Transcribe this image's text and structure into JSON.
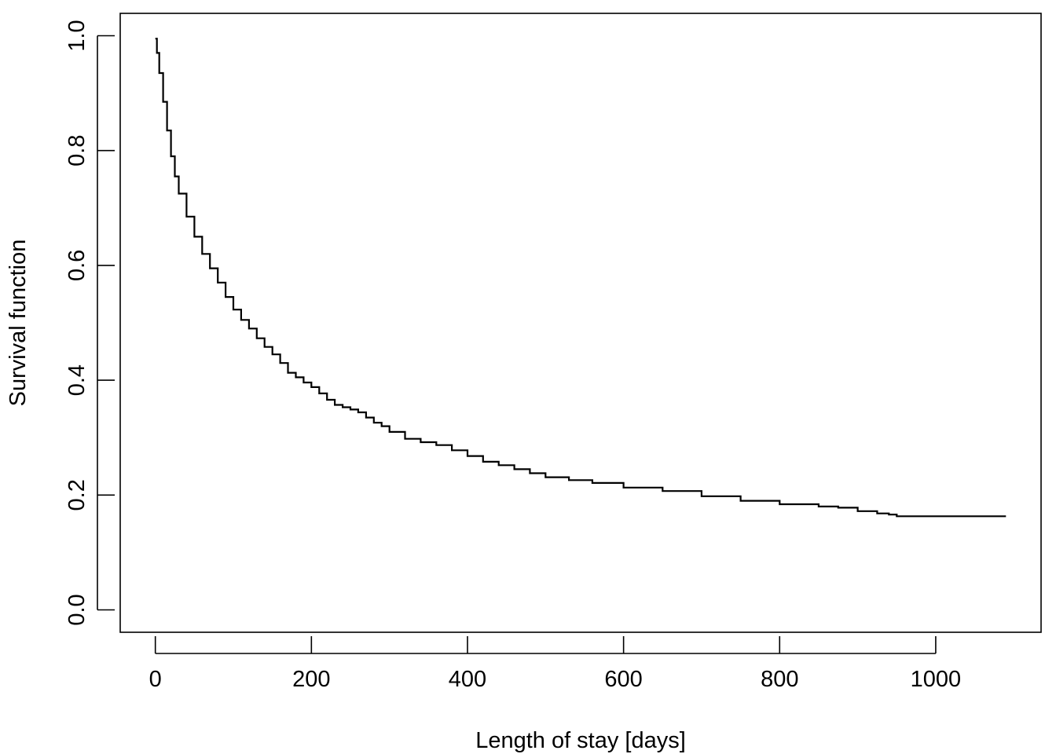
{
  "chart_data": {
    "type": "line",
    "step": true,
    "title": "",
    "xlabel": "Length of stay [days]",
    "ylabel": "Survival function",
    "xlim": [
      -45,
      1135
    ],
    "ylim": [
      -0.039,
      1.039
    ],
    "xticks": [
      0,
      200,
      400,
      600,
      800,
      1000
    ],
    "xtick_labels": [
      "0",
      "200",
      "400",
      "600",
      "800",
      "1000"
    ],
    "yticks": [
      0.0,
      0.2,
      0.4,
      0.6,
      0.8,
      1.0
    ],
    "ytick_labels": [
      "0.0",
      "0.2",
      "0.4",
      "0.6",
      "0.8",
      "1.0"
    ],
    "grid": false,
    "legend": "none",
    "series": [
      {
        "color": "#000000",
        "x": [
          0,
          2,
          5,
          10,
          15,
          20,
          25,
          30,
          40,
          50,
          60,
          70,
          80,
          90,
          100,
          110,
          120,
          130,
          140,
          150,
          160,
          170,
          180,
          190,
          200,
          210,
          220,
          230,
          240,
          250,
          260,
          270,
          280,
          290,
          300,
          320,
          340,
          360,
          380,
          400,
          420,
          440,
          460,
          480,
          500,
          530,
          560,
          600,
          650,
          700,
          750,
          800,
          850,
          875,
          900,
          925,
          940,
          950,
          1000,
          1050,
          1090
        ],
        "y": [
          0.995,
          0.97,
          0.935,
          0.885,
          0.835,
          0.79,
          0.755,
          0.725,
          0.685,
          0.65,
          0.62,
          0.595,
          0.57,
          0.545,
          0.523,
          0.505,
          0.49,
          0.473,
          0.458,
          0.445,
          0.43,
          0.413,
          0.405,
          0.396,
          0.388,
          0.377,
          0.366,
          0.357,
          0.353,
          0.349,
          0.344,
          0.335,
          0.326,
          0.32,
          0.31,
          0.298,
          0.292,
          0.287,
          0.278,
          0.268,
          0.258,
          0.252,
          0.245,
          0.238,
          0.231,
          0.226,
          0.221,
          0.213,
          0.207,
          0.198,
          0.19,
          0.184,
          0.18,
          0.178,
          0.172,
          0.168,
          0.166,
          0.163,
          0.163,
          0.163,
          0.163
        ]
      }
    ]
  }
}
